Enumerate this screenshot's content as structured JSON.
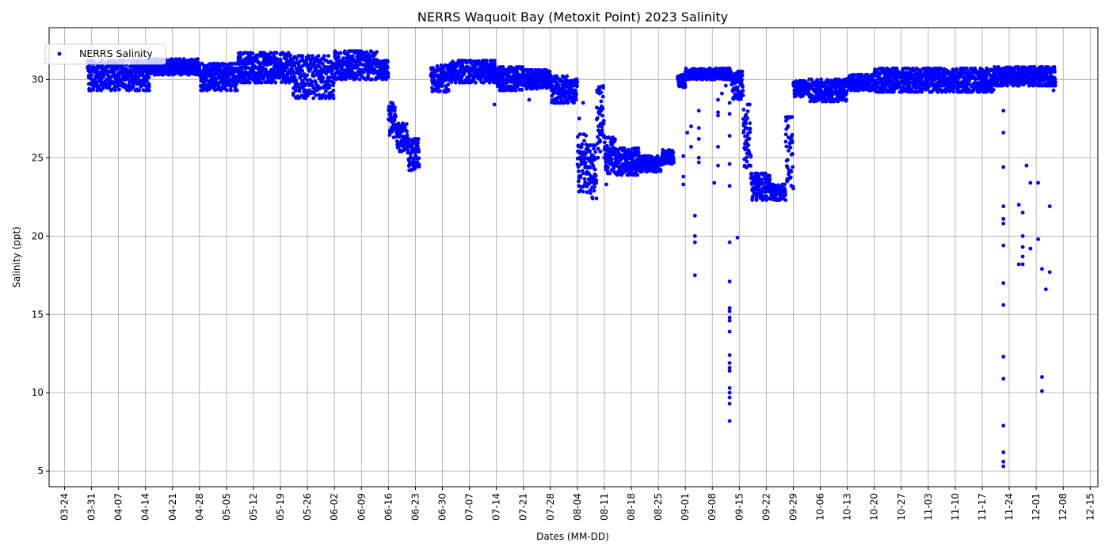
{
  "chart_data": {
    "type": "scatter",
    "title": "NERRS Waquoit Bay (Metoxit Point) 2023 Salinity",
    "xlabel": "Dates (MM-DD)",
    "ylabel": "Salinity (ppt)",
    "xlim": [
      "2023-03-20",
      "2023-12-17"
    ],
    "ylim": [
      4,
      33.3
    ],
    "grid": true,
    "legend_position": "top-left",
    "x_ticks": [
      "03-24",
      "03-31",
      "04-07",
      "04-14",
      "04-21",
      "04-28",
      "05-05",
      "05-12",
      "05-19",
      "05-26",
      "06-02",
      "06-09",
      "06-16",
      "06-23",
      "06-30",
      "07-07",
      "07-14",
      "07-21",
      "07-28",
      "08-04",
      "08-11",
      "08-18",
      "08-25",
      "09-01",
      "09-08",
      "09-15",
      "09-22",
      "09-29",
      "10-06",
      "10-13",
      "10-20",
      "10-27",
      "11-03",
      "11-10",
      "11-17",
      "11-24",
      "12-01",
      "12-08",
      "12-15"
    ],
    "y_ticks": [
      5,
      10,
      15,
      20,
      25,
      30
    ],
    "series": [
      {
        "name": "NERRS Salinity",
        "color": "#0000ff",
        "marker": "circle",
        "bands": [
          {
            "start": "2023-03-30",
            "end": "2023-04-15",
            "lo": 29.3,
            "hi": 31.2
          },
          {
            "start": "2023-04-15",
            "end": "2023-04-28",
            "lo": 30.3,
            "hi": 31.3
          },
          {
            "start": "2023-04-28",
            "end": "2023-05-08",
            "lo": 29.3,
            "hi": 31.0
          },
          {
            "start": "2023-05-08",
            "end": "2023-05-22",
            "lo": 29.8,
            "hi": 31.7
          },
          {
            "start": "2023-05-22",
            "end": "2023-06-02",
            "lo": 28.8,
            "hi": 31.5
          },
          {
            "start": "2023-06-02",
            "end": "2023-06-13",
            "lo": 30.0,
            "hi": 31.8
          },
          {
            "start": "2023-06-13",
            "end": "2023-06-16",
            "lo": 30.0,
            "hi": 31.2
          },
          {
            "start": "2023-06-16",
            "end": "2023-06-18",
            "lo": 26.3,
            "hi": 28.6
          },
          {
            "start": "2023-06-18",
            "end": "2023-06-21",
            "lo": 25.4,
            "hi": 27.2
          },
          {
            "start": "2023-06-21",
            "end": "2023-06-24",
            "lo": 24.2,
            "hi": 26.2
          },
          {
            "start": "2023-06-27",
            "end": "2023-07-02",
            "lo": 29.2,
            "hi": 30.9
          },
          {
            "start": "2023-07-02",
            "end": "2023-07-14",
            "lo": 29.8,
            "hi": 31.2
          },
          {
            "start": "2023-07-14",
            "end": "2023-07-21",
            "lo": 29.3,
            "hi": 30.8
          },
          {
            "start": "2023-07-21",
            "end": "2023-07-28",
            "lo": 29.4,
            "hi": 30.6
          },
          {
            "start": "2023-07-28",
            "end": "2023-08-04",
            "lo": 28.5,
            "hi": 30.2
          },
          {
            "start": "2023-08-04",
            "end": "2023-08-07",
            "lo": 22.8,
            "hi": 26.5
          },
          {
            "start": "2023-08-07",
            "end": "2023-08-09",
            "lo": 22.4,
            "hi": 25.8
          },
          {
            "start": "2023-08-09",
            "end": "2023-08-11",
            "lo": 25.0,
            "hi": 29.6
          },
          {
            "start": "2023-08-11",
            "end": "2023-08-14",
            "lo": 24.0,
            "hi": 26.3
          },
          {
            "start": "2023-08-14",
            "end": "2023-08-20",
            "lo": 23.9,
            "hi": 25.6
          },
          {
            "start": "2023-08-20",
            "end": "2023-08-26",
            "lo": 24.1,
            "hi": 25.1
          },
          {
            "start": "2023-08-26",
            "end": "2023-08-29",
            "lo": 24.6,
            "hi": 25.5
          },
          {
            "start": "2023-08-30",
            "end": "2023-09-01",
            "lo": 29.5,
            "hi": 30.3
          },
          {
            "start": "2023-09-01",
            "end": "2023-09-13",
            "lo": 30.0,
            "hi": 30.7
          },
          {
            "start": "2023-09-13",
            "end": "2023-09-16",
            "lo": 28.6,
            "hi": 30.5
          },
          {
            "start": "2023-09-16",
            "end": "2023-09-18",
            "lo": 24.0,
            "hi": 28.4
          },
          {
            "start": "2023-09-18",
            "end": "2023-09-23",
            "lo": 22.3,
            "hi": 24.0
          },
          {
            "start": "2023-09-23",
            "end": "2023-09-27",
            "lo": 22.3,
            "hi": 23.3
          },
          {
            "start": "2023-09-27",
            "end": "2023-09-29",
            "lo": 22.8,
            "hi": 27.6
          },
          {
            "start": "2023-09-29",
            "end": "2023-10-03",
            "lo": 28.9,
            "hi": 29.9
          },
          {
            "start": "2023-10-03",
            "end": "2023-10-13",
            "lo": 28.6,
            "hi": 30.0
          },
          {
            "start": "2023-10-13",
            "end": "2023-10-20",
            "lo": 29.3,
            "hi": 30.3
          },
          {
            "start": "2023-10-20",
            "end": "2023-11-20",
            "lo": 29.2,
            "hi": 30.7
          },
          {
            "start": "2023-11-20",
            "end": "2023-12-06",
            "lo": 29.6,
            "hi": 30.8
          }
        ],
        "outliers": [
          {
            "x": "2023-04-12",
            "y": 31.5
          },
          {
            "x": "2023-07-13",
            "y": 28.4
          },
          {
            "x": "2023-07-22",
            "y": 28.7
          },
          {
            "x": "2023-08-04",
            "y": 27.5
          },
          {
            "x": "2023-08-05",
            "y": 28.5
          },
          {
            "x": "2023-08-11",
            "y": 23.3
          },
          {
            "x": "2023-08-31",
            "y": 25.1
          },
          {
            "x": "2023-08-31",
            "y": 23.8
          },
          {
            "x": "2023-08-31",
            "y": 23.3
          },
          {
            "x": "2023-09-01",
            "y": 26.6
          },
          {
            "x": "2023-09-02",
            "y": 27.0
          },
          {
            "x": "2023-09-02",
            "y": 25.7
          },
          {
            "x": "2023-09-03",
            "y": 21.3
          },
          {
            "x": "2023-09-03",
            "y": 20.0
          },
          {
            "x": "2023-09-03",
            "y": 19.6
          },
          {
            "x": "2023-09-03",
            "y": 17.5
          },
          {
            "x": "2023-09-04",
            "y": 28.0
          },
          {
            "x": "2023-09-04",
            "y": 26.9
          },
          {
            "x": "2023-09-04",
            "y": 26.2
          },
          {
            "x": "2023-09-04",
            "y": 25.0
          },
          {
            "x": "2023-09-04",
            "y": 24.7
          },
          {
            "x": "2023-09-08",
            "y": 23.4
          },
          {
            "x": "2023-09-09",
            "y": 28.7
          },
          {
            "x": "2023-09-09",
            "y": 27.9
          },
          {
            "x": "2023-09-09",
            "y": 27.7
          },
          {
            "x": "2023-09-09",
            "y": 25.7
          },
          {
            "x": "2023-09-09",
            "y": 24.5
          },
          {
            "x": "2023-09-10",
            "y": 29.1
          },
          {
            "x": "2023-09-11",
            "y": 29.6
          },
          {
            "x": "2023-09-12",
            "y": 28.5
          },
          {
            "x": "2023-09-12",
            "y": 27.8
          },
          {
            "x": "2023-09-12",
            "y": 26.4
          },
          {
            "x": "2023-09-12",
            "y": 24.6
          },
          {
            "x": "2023-09-12",
            "y": 23.2
          },
          {
            "x": "2023-09-12",
            "y": 19.6
          },
          {
            "x": "2023-09-12",
            "y": 17.1
          },
          {
            "x": "2023-09-12",
            "y": 15.4
          },
          {
            "x": "2023-09-12",
            "y": 15.2
          },
          {
            "x": "2023-09-12",
            "y": 14.8
          },
          {
            "x": "2023-09-12",
            "y": 14.6
          },
          {
            "x": "2023-09-12",
            "y": 13.9
          },
          {
            "x": "2023-09-12",
            "y": 12.4
          },
          {
            "x": "2023-09-12",
            "y": 11.9
          },
          {
            "x": "2023-09-12",
            "y": 11.6
          },
          {
            "x": "2023-09-12",
            "y": 11.4
          },
          {
            "x": "2023-09-12",
            "y": 10.3
          },
          {
            "x": "2023-09-12",
            "y": 10.0
          },
          {
            "x": "2023-09-12",
            "y": 9.7
          },
          {
            "x": "2023-09-12",
            "y": 9.3
          },
          {
            "x": "2023-09-12",
            "y": 8.2
          },
          {
            "x": "2023-09-14",
            "y": 19.9
          },
          {
            "x": "2023-11-22",
            "y": 28.0
          },
          {
            "x": "2023-11-22",
            "y": 26.6
          },
          {
            "x": "2023-11-22",
            "y": 24.4
          },
          {
            "x": "2023-11-22",
            "y": 21.9
          },
          {
            "x": "2023-11-22",
            "y": 21.1
          },
          {
            "x": "2023-11-22",
            "y": 20.8
          },
          {
            "x": "2023-11-22",
            "y": 19.4
          },
          {
            "x": "2023-11-22",
            "y": 17.0
          },
          {
            "x": "2023-11-22",
            "y": 15.6
          },
          {
            "x": "2023-11-22",
            "y": 12.3
          },
          {
            "x": "2023-11-22",
            "y": 10.9
          },
          {
            "x": "2023-11-22",
            "y": 7.9
          },
          {
            "x": "2023-11-22",
            "y": 6.2
          },
          {
            "x": "2023-11-22",
            "y": 5.6
          },
          {
            "x": "2023-11-22",
            "y": 5.3
          },
          {
            "x": "2023-11-26",
            "y": 22.0
          },
          {
            "x": "2023-11-26",
            "y": 18.2
          },
          {
            "x": "2023-11-27",
            "y": 21.5
          },
          {
            "x": "2023-11-27",
            "y": 20.0
          },
          {
            "x": "2023-11-27",
            "y": 19.3
          },
          {
            "x": "2023-11-27",
            "y": 18.7
          },
          {
            "x": "2023-11-27",
            "y": 18.2
          },
          {
            "x": "2023-11-28",
            "y": 24.5
          },
          {
            "x": "2023-11-29",
            "y": 23.4
          },
          {
            "x": "2023-11-29",
            "y": 19.2
          },
          {
            "x": "2023-12-01",
            "y": 23.4
          },
          {
            "x": "2023-12-01",
            "y": 19.8
          },
          {
            "x": "2023-12-02",
            "y": 17.9
          },
          {
            "x": "2023-12-02",
            "y": 11.0
          },
          {
            "x": "2023-12-02",
            "y": 10.1
          },
          {
            "x": "2023-12-03",
            "y": 16.6
          },
          {
            "x": "2023-12-04",
            "y": 17.7
          },
          {
            "x": "2023-12-04",
            "y": 21.9
          },
          {
            "x": "2023-12-05",
            "y": 29.3
          }
        ]
      }
    ]
  }
}
